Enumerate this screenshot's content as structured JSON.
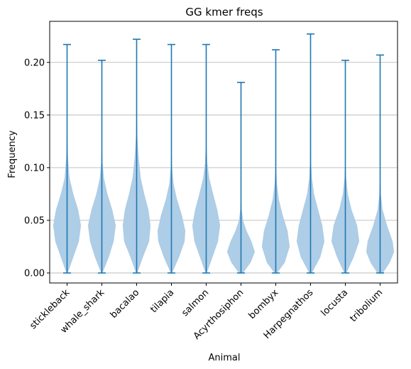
{
  "chart_data": {
    "type": "violin",
    "title": "GG kmer freqs",
    "xlabel": "Animal",
    "ylabel": "Frequency",
    "ylim": [
      -0.0095,
      0.239
    ],
    "yticks": [
      0.0,
      0.05,
      0.1,
      0.15,
      0.2
    ],
    "ytick_labels": [
      "0.00",
      "0.05",
      "0.10",
      "0.15",
      "0.20"
    ],
    "grid": "horizontal",
    "categories": [
      "stickleback",
      "whale_shark",
      "bacalao",
      "tilapia",
      "salmon",
      "Acyrthosiphon",
      "bombyx",
      "Harpegnathos",
      "locusta",
      "tribolium"
    ],
    "series": [
      {
        "name": "stickleback",
        "min": 0.0,
        "max": 0.217,
        "profile": [
          [
            0.0,
            0.05
          ],
          [
            0.015,
            0.45
          ],
          [
            0.03,
            0.85
          ],
          [
            0.045,
            1.0
          ],
          [
            0.06,
            0.8
          ],
          [
            0.075,
            0.45
          ],
          [
            0.09,
            0.18
          ],
          [
            0.11,
            0.06
          ],
          [
            0.13,
            0.02
          ],
          [
            0.217,
            0.0
          ]
        ]
      },
      {
        "name": "whale_shark",
        "min": 0.0,
        "max": 0.202,
        "profile": [
          [
            0.0,
            0.05
          ],
          [
            0.015,
            0.5
          ],
          [
            0.03,
            0.85
          ],
          [
            0.045,
            1.0
          ],
          [
            0.06,
            0.75
          ],
          [
            0.075,
            0.4
          ],
          [
            0.09,
            0.15
          ],
          [
            0.105,
            0.05
          ],
          [
            0.12,
            0.02
          ],
          [
            0.202,
            0.0
          ]
        ]
      },
      {
        "name": "bacalao",
        "min": 0.0,
        "max": 0.222,
        "profile": [
          [
            0.0,
            0.05
          ],
          [
            0.015,
            0.45
          ],
          [
            0.03,
            0.9
          ],
          [
            0.045,
            1.0
          ],
          [
            0.06,
            0.85
          ],
          [
            0.075,
            0.55
          ],
          [
            0.09,
            0.3
          ],
          [
            0.11,
            0.14
          ],
          [
            0.13,
            0.05
          ],
          [
            0.15,
            0.02
          ],
          [
            0.222,
            0.0
          ]
        ]
      },
      {
        "name": "tilapia",
        "min": 0.0,
        "max": 0.217,
        "profile": [
          [
            0.0,
            0.05
          ],
          [
            0.015,
            0.55
          ],
          [
            0.03,
            0.95
          ],
          [
            0.04,
            1.0
          ],
          [
            0.055,
            0.75
          ],
          [
            0.07,
            0.4
          ],
          [
            0.085,
            0.15
          ],
          [
            0.1,
            0.05
          ],
          [
            0.115,
            0.02
          ],
          [
            0.217,
            0.0
          ]
        ]
      },
      {
        "name": "salmon",
        "min": 0.0,
        "max": 0.217,
        "profile": [
          [
            0.0,
            0.05
          ],
          [
            0.015,
            0.45
          ],
          [
            0.03,
            0.85
          ],
          [
            0.045,
            1.0
          ],
          [
            0.06,
            0.8
          ],
          [
            0.075,
            0.5
          ],
          [
            0.09,
            0.22
          ],
          [
            0.105,
            0.08
          ],
          [
            0.12,
            0.03
          ],
          [
            0.217,
            0.0
          ]
        ]
      },
      {
        "name": "Acyrthosiphon",
        "min": 0.0,
        "max": 0.181,
        "profile": [
          [
            0.0,
            0.15
          ],
          [
            0.01,
            0.7
          ],
          [
            0.02,
            1.0
          ],
          [
            0.03,
            0.75
          ],
          [
            0.04,
            0.4
          ],
          [
            0.05,
            0.15
          ],
          [
            0.06,
            0.05
          ],
          [
            0.07,
            0.02
          ],
          [
            0.181,
            0.0
          ]
        ]
      },
      {
        "name": "bombyx",
        "min": 0.0,
        "max": 0.212,
        "profile": [
          [
            0.0,
            0.1
          ],
          [
            0.01,
            0.65
          ],
          [
            0.025,
            1.0
          ],
          [
            0.04,
            0.85
          ],
          [
            0.055,
            0.5
          ],
          [
            0.07,
            0.22
          ],
          [
            0.085,
            0.08
          ],
          [
            0.1,
            0.03
          ],
          [
            0.212,
            0.0
          ]
        ]
      },
      {
        "name": "Harpegnathos",
        "min": 0.0,
        "max": 0.227,
        "profile": [
          [
            0.0,
            0.1
          ],
          [
            0.015,
            0.7
          ],
          [
            0.03,
            1.0
          ],
          [
            0.045,
            0.85
          ],
          [
            0.06,
            0.55
          ],
          [
            0.075,
            0.25
          ],
          [
            0.09,
            0.1
          ],
          [
            0.105,
            0.04
          ],
          [
            0.227,
            0.0
          ]
        ]
      },
      {
        "name": "locusta",
        "min": 0.0,
        "max": 0.202,
        "profile": [
          [
            0.0,
            0.08
          ],
          [
            0.015,
            0.6
          ],
          [
            0.03,
            1.0
          ],
          [
            0.045,
            0.85
          ],
          [
            0.06,
            0.45
          ],
          [
            0.075,
            0.18
          ],
          [
            0.09,
            0.06
          ],
          [
            0.105,
            0.02
          ],
          [
            0.202,
            0.0
          ]
        ]
      },
      {
        "name": "tribolium",
        "min": 0.0,
        "max": 0.207,
        "profile": [
          [
            0.0,
            0.2
          ],
          [
            0.01,
            0.7
          ],
          [
            0.02,
            1.0
          ],
          [
            0.03,
            0.9
          ],
          [
            0.045,
            0.5
          ],
          [
            0.06,
            0.18
          ],
          [
            0.075,
            0.05
          ],
          [
            0.09,
            0.02
          ],
          [
            0.207,
            0.0
          ]
        ]
      }
    ],
    "colors": {
      "line": "#1f77b4",
      "fill": "#aecde6",
      "grid": "#b0b0b0"
    }
  }
}
